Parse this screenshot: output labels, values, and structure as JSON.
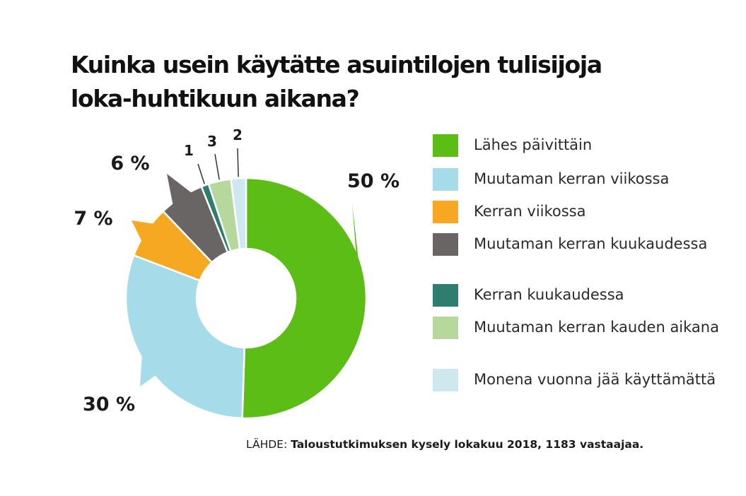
{
  "chart_data": {
    "type": "pie",
    "title": "Kuinka usein käytätte asuintilojen tulisijoja loka-huhtikuun aikana?",
    "categories": [
      "Lähes päivittäin",
      "Muutaman kerran viikossa",
      "Kerran viikossa",
      "Muutaman kerran kuukaudessa",
      "Kerran kuukaudessa",
      "Muutaman kerran kauden aikana",
      "Monena vuonna jää käyttämättä"
    ],
    "values": [
      50,
      30,
      7,
      6,
      1,
      3,
      2
    ],
    "value_labels": [
      "50 %",
      "30 %",
      "7 %",
      "6 %",
      "1",
      "3",
      "2"
    ],
    "colors": [
      "#5cbd16",
      "#a6dcea",
      "#f7a823",
      "#686564",
      "#2e7d6f",
      "#b6d89d",
      "#cfe8f0"
    ],
    "legend_placement": "right"
  },
  "source": {
    "prefix": "LÄHDE:",
    "text": "Taloustutkimuksen kysely lokakuu 2018, 1183 vastaajaa."
  }
}
